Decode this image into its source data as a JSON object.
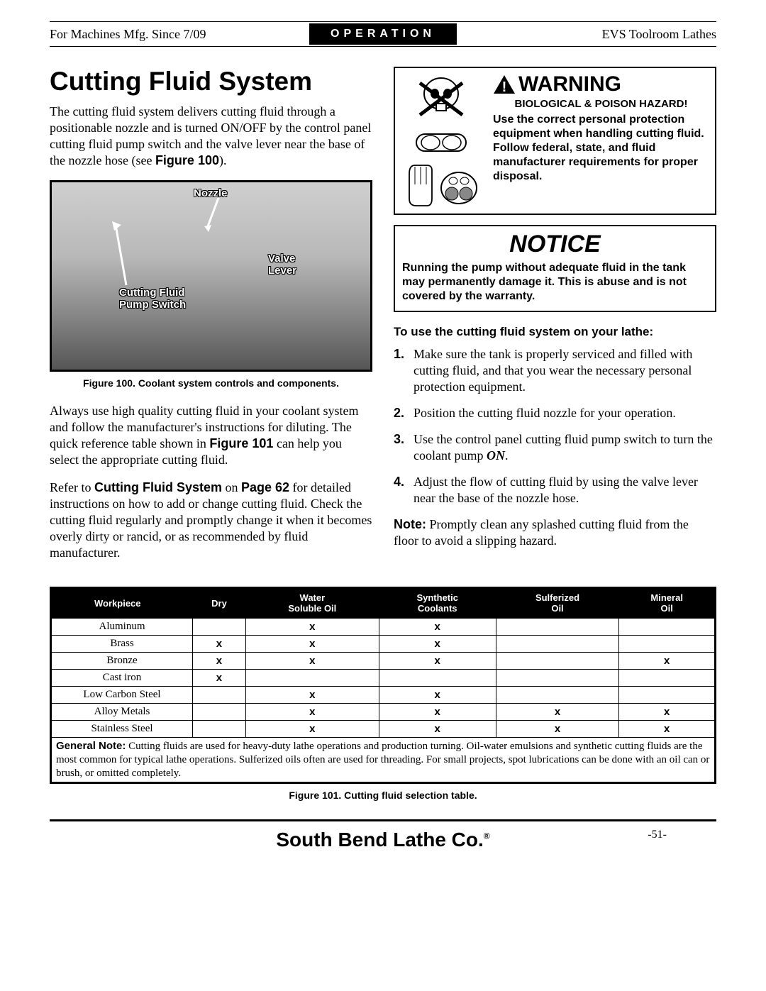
{
  "header": {
    "left": "For Machines Mfg. Since 7/09",
    "center": "OPERATION",
    "right": "EVS Toolroom Lathes"
  },
  "left_column": {
    "h1": "Cutting Fluid System",
    "p1_a": "The cutting fluid system delivers cutting fluid through a positionable nozzle and is turned ON/OFF by the control panel cutting fluid pump switch and the valve lever near the base of the nozzle hose (see ",
    "p1_b": "Figure 100",
    "p1_c": ").",
    "fig100_labels": {
      "nozzle": "Nozzle",
      "valve": "Valve\nLever",
      "pump": "Cutting Fluid\nPump Switch"
    },
    "fig100_caption": "Figure 100. Coolant system controls and components.",
    "p2_a": "Always use high quality cutting fluid in your coolant system and follow the manufacturer's instructions for diluting. The quick reference table shown in ",
    "p2_b": "Figure 101",
    "p2_c": " can help you select the appropriate cutting fluid.",
    "p3_a": "Refer to ",
    "p3_b": "Cutting Fluid System",
    "p3_c": " on ",
    "p3_d": "Page 62",
    "p3_e": " for detailed instructions on how to add or change cutting fluid. Check the cutting fluid regularly and promptly change it when it becomes overly dirty or rancid, or as recommended by fluid manufacturer."
  },
  "warning": {
    "title": "WARNING",
    "subtitle": "BIOLOGICAL & POISON HAZARD!",
    "body": "Use the correct personal protection equipment when handling cutting fluid. Follow federal, state, and fluid manufacturer requirements for proper disposal."
  },
  "notice": {
    "title": "NOTICE",
    "body": "Running the pump without adequate fluid in the tank may permanently damage it. This is abuse and is not covered by the warranty."
  },
  "steps": {
    "title": "To use the cutting fluid system on your lathe:",
    "items": [
      "Make sure the tank is properly serviced and filled with cutting fluid, and that you wear the necessary personal protection equipment.",
      "Position the cutting fluid nozzle for your operation.",
      "Use the control panel cutting fluid pump switch to turn the coolant pump ",
      "Adjust the flow of cutting fluid by using the valve lever near the base of the nozzle hose."
    ],
    "step3_on": "ON",
    "step3_suffix": ".",
    "note_label": "Note:",
    "note_body": " Promptly clean any splashed cutting fluid from the floor to avoid a slipping hazard."
  },
  "table": {
    "columns": [
      "Workpiece",
      "Dry",
      "Water\nSoluble Oil",
      "Synthetic\nCoolants",
      "Sulferized\nOil",
      "Mineral\nOil"
    ],
    "rows": [
      {
        "material": "Aluminum",
        "marks": [
          "",
          "x",
          "x",
          "",
          ""
        ]
      },
      {
        "material": "Brass",
        "marks": [
          "x",
          "x",
          "x",
          "",
          ""
        ]
      },
      {
        "material": "Bronze",
        "marks": [
          "x",
          "x",
          "x",
          "",
          "x"
        ]
      },
      {
        "material": "Cast iron",
        "marks": [
          "x",
          "",
          "",
          "",
          ""
        ]
      },
      {
        "material": "Low Carbon Steel",
        "marks": [
          "",
          "x",
          "x",
          "",
          ""
        ]
      },
      {
        "material": "Alloy Metals",
        "marks": [
          "",
          "x",
          "x",
          "x",
          "x"
        ]
      },
      {
        "material": "Stainless Steel",
        "marks": [
          "",
          "x",
          "x",
          "x",
          "x"
        ]
      }
    ],
    "note_label": "General Note:",
    "note_body": " Cutting fluids are used for heavy-duty lathe operations and production turning. Oil-water emulsions and synthetic cutting fluids are the most common for typical lathe operations. Sulferized oils often are used for threading. For small projects, spot lubrications can be done with an oil can or brush, or omitted completely.",
    "caption": "Figure 101. Cutting fluid selection table.",
    "mark_glyph": "x",
    "header_bg": "#000000",
    "header_fg": "#ffffff",
    "border_color": "#000000"
  },
  "footer": {
    "brand": "South Bend Lathe Co.",
    "reg": "®",
    "page": "-51-"
  }
}
